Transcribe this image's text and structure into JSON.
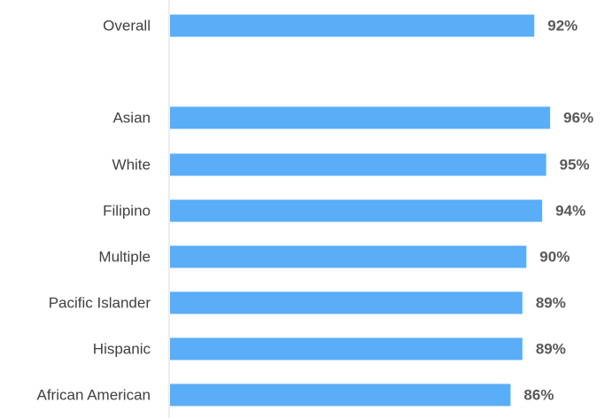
{
  "chart_data": {
    "type": "bar",
    "orientation": "horizontal",
    "title": "",
    "xlabel": "",
    "ylabel": "",
    "categories": [
      "Overall",
      "Asian",
      "White",
      "Filipino",
      "Multiple",
      "Pacific Islander",
      "Hispanic",
      "African American"
    ],
    "values": [
      92,
      96,
      95,
      94,
      90,
      89,
      89,
      86
    ],
    "value_labels": [
      "92%",
      "96%",
      "95%",
      "94%",
      "90%",
      "89%",
      "89%",
      "86%"
    ],
    "value_unit": "%",
    "xlim": [
      0,
      100
    ],
    "grid": false,
    "legend": "none",
    "bar_color": "#5AADF7",
    "category_label_color": "#404040",
    "value_label_color": "#595959",
    "axis_color": "#D9D9D9"
  }
}
